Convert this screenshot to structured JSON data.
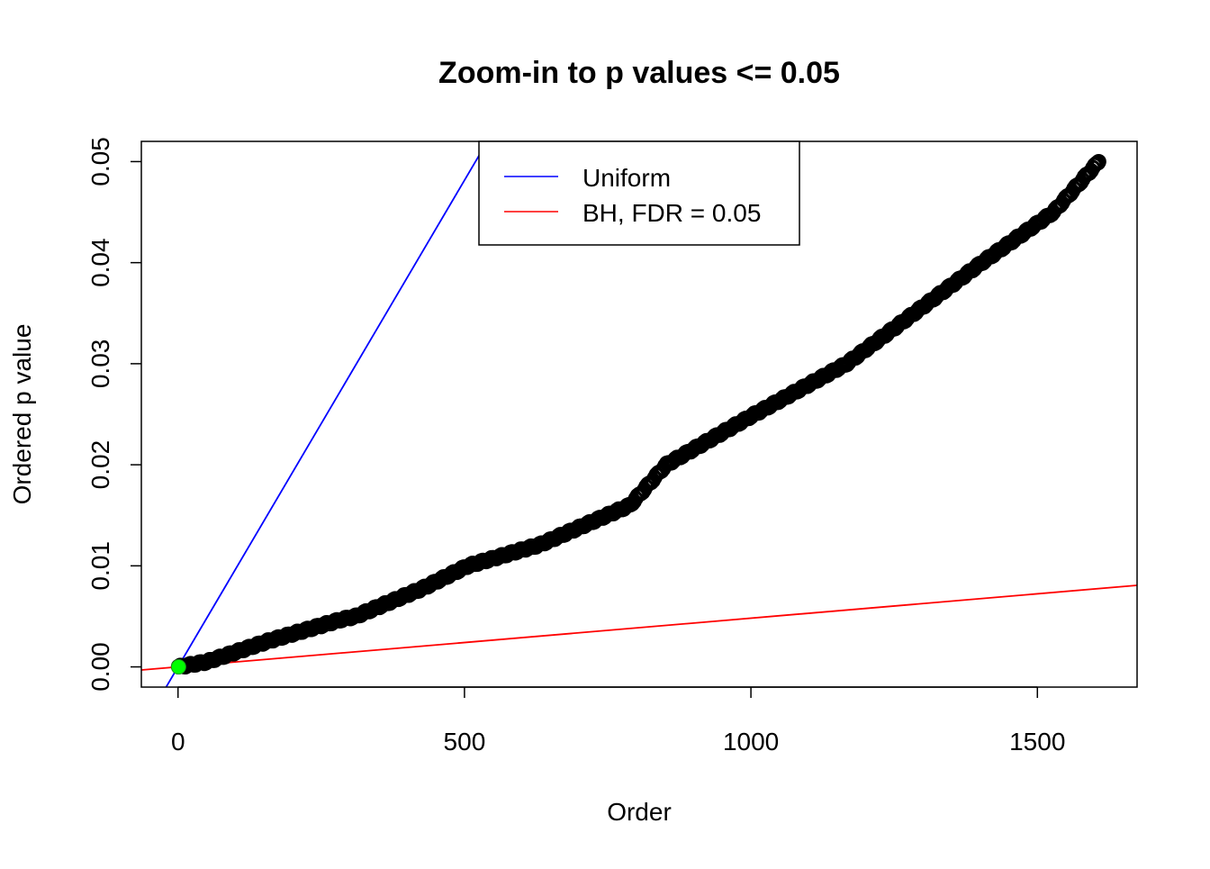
{
  "chart_data": {
    "type": "scatter",
    "title": "Zoom-in to p values <= 0.05",
    "xlabel": "Order",
    "ylabel": "Ordered p value",
    "xlim": [
      -64,
      1674
    ],
    "ylim": [
      -0.002,
      0.052
    ],
    "x_ticks": [
      0,
      500,
      1000,
      1500
    ],
    "x_tick_labels": [
      "0",
      "500",
      "1000",
      "1500"
    ],
    "y_ticks": [
      0,
      0.01,
      0.02,
      0.03,
      0.04,
      0.05
    ],
    "y_tick_labels": [
      "0.00",
      "0.01",
      "0.02",
      "0.03",
      "0.04",
      "0.05"
    ],
    "grid": false,
    "legend_position": "top-center",
    "points": {
      "color": "#000000",
      "x": [
        1,
        50,
        160,
        286,
        310,
        428,
        506,
        632,
        789,
        852,
        1000,
        1167,
        1403,
        1528,
        1607
      ],
      "y": [
        0.0,
        0.0005,
        0.0026,
        0.0047,
        0.005,
        0.0078,
        0.01,
        0.0121,
        0.016,
        0.02,
        0.0248,
        0.03,
        0.04,
        0.045,
        0.05
      ]
    },
    "highlight_point": {
      "x": 1,
      "y": 0.0,
      "color": "#00ff00"
    },
    "lines": [
      {
        "name": "Uniform",
        "color": "#0000ff",
        "intercept": 0,
        "slope": 9.63e-05
      },
      {
        "name": "BH, FDR = 0.05",
        "color": "#ff0000",
        "intercept": 0,
        "slope": 4.82e-06
      }
    ]
  }
}
